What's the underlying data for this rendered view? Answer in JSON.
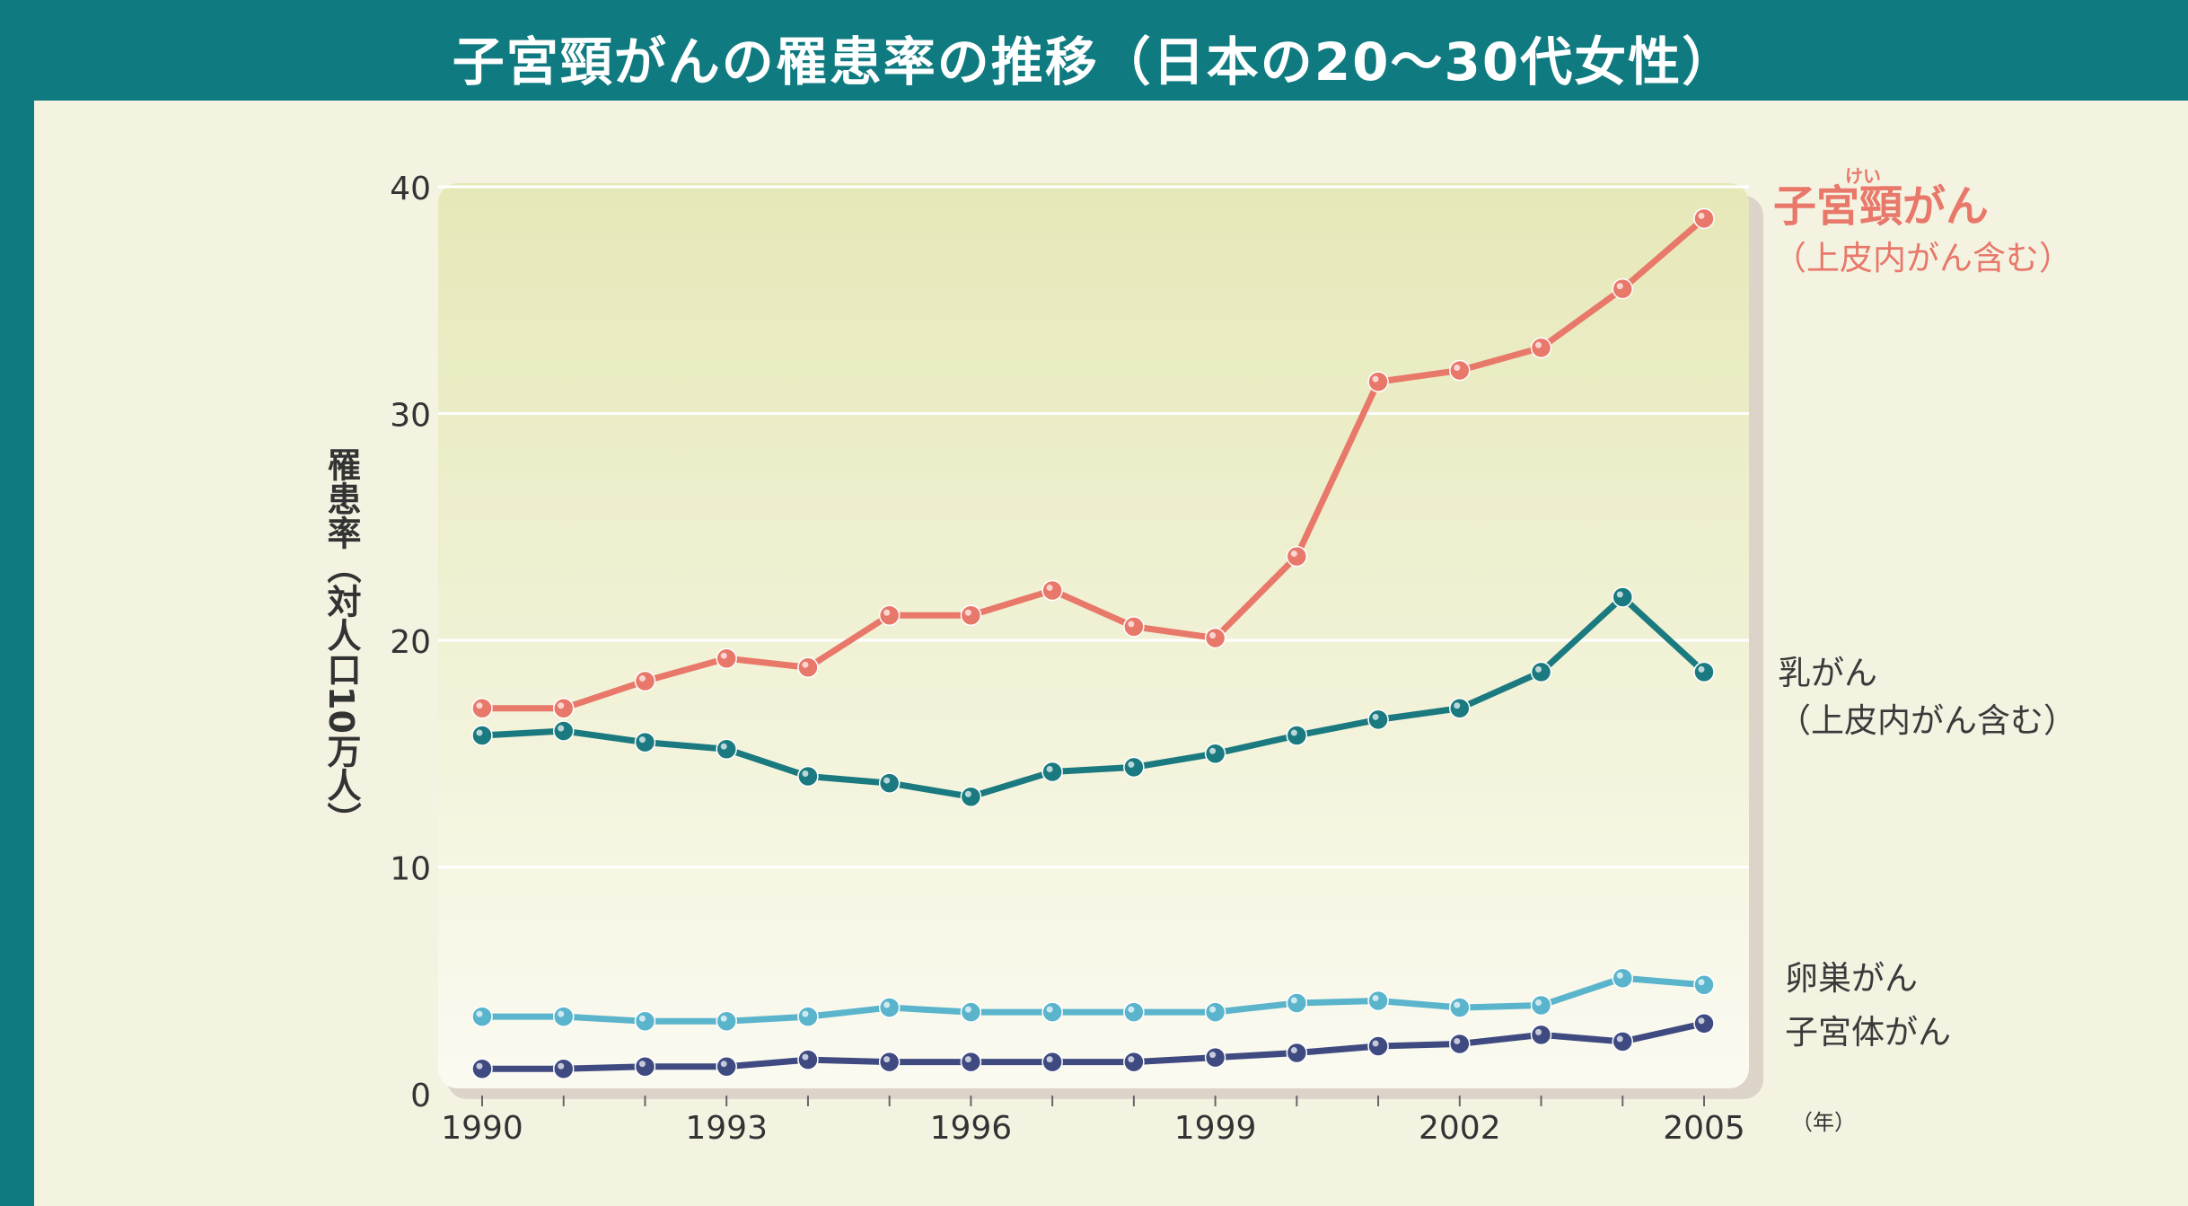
{
  "header": {
    "title": "子宮頸がんの罹患率の推移（日本の20〜30代女性）",
    "ruby": "けい"
  },
  "colors": {
    "frame": "#0f7b80",
    "cervical": "#e8786a",
    "breast": "#1a7a80",
    "ovarian": "#5ab4cc",
    "uterine": "#3f4a80"
  },
  "labels": {
    "cervical": "子宮頸がん",
    "cervical_ruby": "けい",
    "cervical_sub": "（上皮内がん含む）",
    "breast": "乳がん",
    "breast_sub": "（上皮内がん含む）",
    "ovarian": "卵巣がん",
    "uterine": "子宮体がん"
  },
  "chart_data": {
    "type": "line",
    "title": "子宮頸がんの罹患率の推移（日本の20〜30代女性）",
    "xlabel": "（年）",
    "ylabel": "罹患率（対人口10万人）",
    "ylim": [
      0,
      40
    ],
    "yticks": [
      "0",
      "10",
      "20",
      "30",
      "40"
    ],
    "xticks": [
      "1990",
      "1993",
      "1996",
      "1999",
      "2002",
      "2005"
    ],
    "grid": true,
    "x": [
      1990,
      1991,
      1992,
      1993,
      1994,
      1995,
      1996,
      1997,
      1998,
      1999,
      2000,
      2001,
      2002,
      2003,
      2004,
      2005
    ],
    "series": [
      {
        "name": "子宮頸がん（上皮内がん含む）",
        "color": "#e8786a",
        "values": [
          17.0,
          17.0,
          18.2,
          19.2,
          18.8,
          21.1,
          21.1,
          22.2,
          20.6,
          20.1,
          23.7,
          31.4,
          31.9,
          32.9,
          35.5,
          38.6
        ]
      },
      {
        "name": "乳がん（上皮内がん含む）",
        "color": "#1a7a80",
        "values": [
          15.8,
          16.0,
          15.5,
          15.2,
          14.0,
          13.7,
          13.1,
          14.2,
          14.4,
          15.0,
          15.8,
          16.5,
          17.0,
          18.6,
          21.9,
          18.6
        ]
      },
      {
        "name": "卵巣がん",
        "color": "#5ab4cc",
        "values": [
          3.4,
          3.4,
          3.2,
          3.2,
          3.4,
          3.8,
          3.6,
          3.6,
          3.6,
          3.6,
          4.0,
          4.1,
          3.8,
          3.9,
          5.1,
          4.8
        ]
      },
      {
        "name": "子宮体がん",
        "color": "#3f4a80",
        "values": [
          1.1,
          1.1,
          1.2,
          1.2,
          1.5,
          1.4,
          1.4,
          1.4,
          1.4,
          1.6,
          1.8,
          2.1,
          2.2,
          2.6,
          2.3,
          3.1
        ]
      }
    ]
  }
}
